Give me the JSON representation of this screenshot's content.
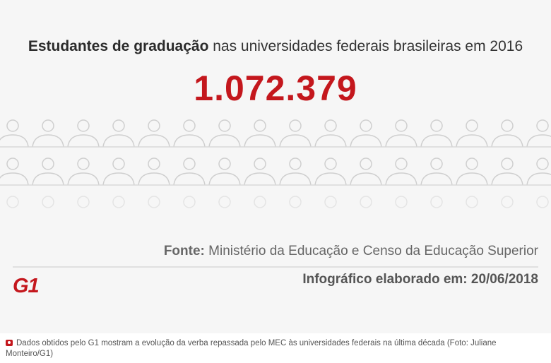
{
  "infographic": {
    "title_bold": "Estudantes de graduação",
    "title_rest": " nas universidades federais brasileiras em 2016",
    "big_number": "1.072.379",
    "source_label": "Fonte:",
    "source_text": " Ministério da Educação e Censo da Educação Superior",
    "made_on": "Infográfico elaborado em: 20/06/2018",
    "logo_text": "G1",
    "person_icon": "person-icon",
    "accent_color": "#c4171d"
  },
  "caption": {
    "icon": "camera-icon",
    "text": "Dados obtidos pelo G1 mostram a evolução da verba repassada pelo MEC às universidades federais na última década (Foto: Juliane Monteiro/G1)"
  }
}
